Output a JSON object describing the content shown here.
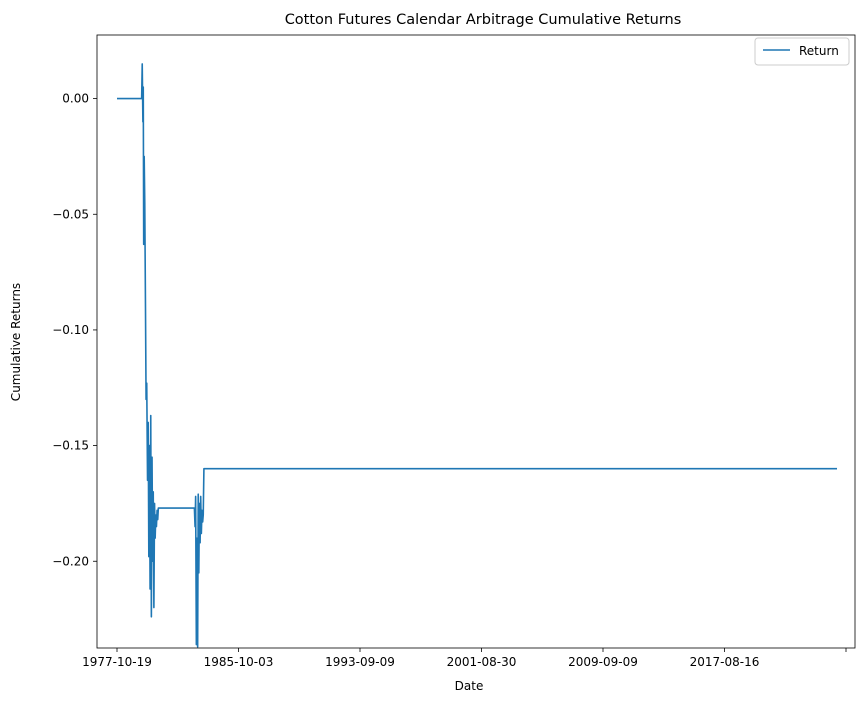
{
  "chart_data": {
    "type": "line",
    "title": "Cotton Futures Calendar Arbitrage Cumulative Returns",
    "xlabel": "Date",
    "ylabel": "Cumulative Returns",
    "x_tick_labels": [
      "1977-10-19",
      "1985-10-03",
      "1993-09-09",
      "2001-08-30",
      "2009-09-09",
      "2017-08-16",
      ""
    ],
    "y_tick_labels": [
      "0.00",
      "−0.05",
      "−0.10",
      "−0.15",
      "−0.20"
    ],
    "y_ticks": [
      0.0,
      -0.05,
      -0.1,
      -0.15,
      -0.2
    ],
    "ylim": [
      -0.2375,
      0.0275
    ],
    "grid": false,
    "legend_position": "top-right",
    "color": "#1f77b4",
    "series": [
      {
        "name": "Return",
        "x": [
          "1977-10-19",
          "1979-06-01",
          "1979-06-15",
          "1979-07-01",
          "1979-07-10",
          "1979-07-20",
          "1979-08-01",
          "1979-08-15",
          "1979-09-01",
          "1979-09-15",
          "1979-10-01",
          "1979-10-20",
          "1979-11-05",
          "1979-11-20",
          "1979-12-05",
          "1979-12-20",
          "1980-01-05",
          "1980-01-20",
          "1980-02-05",
          "1980-02-20",
          "1980-03-05",
          "1980-03-20",
          "1980-04-05",
          "1980-04-20",
          "1980-05-05",
          "1980-05-20",
          "1980-06-05",
          "1980-06-20",
          "1980-07-05",
          "1980-07-20",
          "1982-11-15",
          "1982-12-01",
          "1982-12-15",
          "1983-01-01",
          "1983-01-15",
          "1983-02-01",
          "1983-02-15",
          "1983-03-01",
          "1983-03-15",
          "1983-04-01",
          "1983-04-15",
          "1983-05-01",
          "1983-05-15",
          "1983-06-01",
          "1983-06-15",
          "1983-07-01",
          "2024-12-31"
        ],
        "y": [
          0.0,
          0.0,
          0.015,
          -0.01,
          0.005,
          -0.063,
          -0.025,
          -0.045,
          -0.09,
          -0.13,
          -0.123,
          -0.165,
          -0.14,
          -0.198,
          -0.15,
          -0.212,
          -0.137,
          -0.224,
          -0.155,
          -0.2,
          -0.17,
          -0.22,
          -0.175,
          -0.19,
          -0.18,
          -0.185,
          -0.178,
          -0.182,
          -0.177,
          -0.177,
          -0.177,
          -0.185,
          -0.172,
          -0.236,
          -0.19,
          -0.237,
          -0.171,
          -0.205,
          -0.175,
          -0.192,
          -0.172,
          -0.188,
          -0.178,
          -0.183,
          -0.18,
          -0.16,
          -0.16
        ]
      }
    ]
  }
}
